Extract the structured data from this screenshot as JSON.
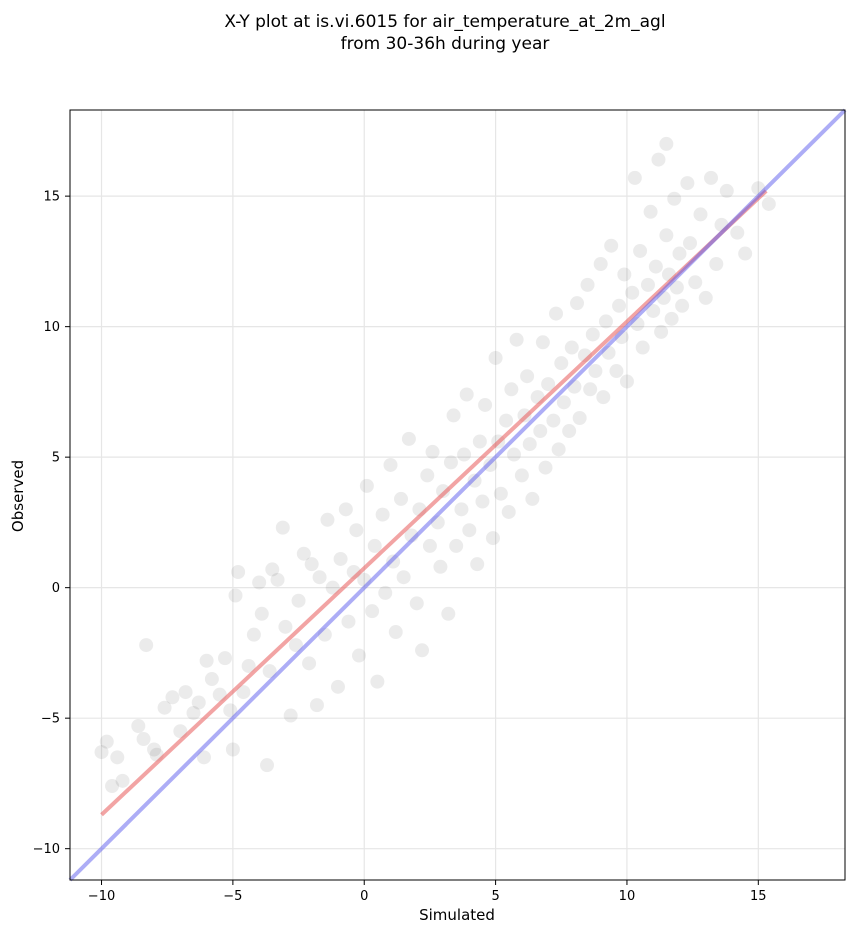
{
  "chart_data": {
    "type": "scatter",
    "title_line1": "X-Y plot at is.vi.6015 for air_temperature_at_2m_agl",
    "title_line2": "from 30-36h during year",
    "xlabel": "Simulated",
    "ylabel": "Observed",
    "xlim": [
      -11.2,
      18.3
    ],
    "ylim": [
      -11.2,
      18.3
    ],
    "x_ticks": [
      -10,
      -5,
      0,
      5,
      10,
      15
    ],
    "y_ticks": [
      -10,
      -5,
      0,
      5,
      10,
      15
    ],
    "x_tick_labels": [
      "−10",
      "−5",
      "0",
      "5",
      "10",
      "15"
    ],
    "y_tick_labels": [
      "−10",
      "−5",
      "0",
      "5",
      "10",
      "15"
    ],
    "grid": true,
    "point_color": "#000000",
    "point_alpha": 0.08,
    "points": [
      [
        -10.0,
        -6.3
      ],
      [
        -9.8,
        -5.9
      ],
      [
        -9.6,
        -7.6
      ],
      [
        -9.4,
        -6.5
      ],
      [
        -9.2,
        -7.4
      ],
      [
        -8.6,
        -5.3
      ],
      [
        -8.4,
        -5.8
      ],
      [
        -8.3,
        -2.2
      ],
      [
        -8.0,
        -6.2
      ],
      [
        -7.9,
        -6.4
      ],
      [
        -7.6,
        -4.6
      ],
      [
        -7.3,
        -4.2
      ],
      [
        -7.0,
        -5.5
      ],
      [
        -6.8,
        -4.0
      ],
      [
        -6.5,
        -4.8
      ],
      [
        -6.3,
        -4.4
      ],
      [
        -6.1,
        -6.5
      ],
      [
        -6.0,
        -2.8
      ],
      [
        -5.8,
        -3.5
      ],
      [
        -5.5,
        -4.1
      ],
      [
        -5.3,
        -2.7
      ],
      [
        -5.1,
        -4.7
      ],
      [
        -5.0,
        -6.2
      ],
      [
        -4.9,
        -0.3
      ],
      [
        -4.8,
        0.6
      ],
      [
        -4.6,
        -4.0
      ],
      [
        -4.4,
        -3.0
      ],
      [
        -4.2,
        -1.8
      ],
      [
        -4.0,
        0.2
      ],
      [
        -3.9,
        -1.0
      ],
      [
        -3.7,
        -6.8
      ],
      [
        -3.6,
        -3.2
      ],
      [
        -3.5,
        0.7
      ],
      [
        -3.3,
        0.3
      ],
      [
        -3.1,
        2.3
      ],
      [
        -3.0,
        -1.5
      ],
      [
        -2.8,
        -4.9
      ],
      [
        -2.6,
        -2.2
      ],
      [
        -2.5,
        -0.5
      ],
      [
        -2.3,
        1.3
      ],
      [
        -2.1,
        -2.9
      ],
      [
        -2.0,
        0.9
      ],
      [
        -1.8,
        -4.5
      ],
      [
        -1.7,
        0.4
      ],
      [
        -1.5,
        -1.8
      ],
      [
        -1.4,
        2.6
      ],
      [
        -1.2,
        0.0
      ],
      [
        -1.0,
        -3.8
      ],
      [
        -0.9,
        1.1
      ],
      [
        -0.7,
        3.0
      ],
      [
        -0.6,
        -1.3
      ],
      [
        -0.4,
        0.6
      ],
      [
        -0.3,
        2.2
      ],
      [
        -0.2,
        -2.6
      ],
      [
        0.0,
        0.3
      ],
      [
        0.1,
        3.9
      ],
      [
        0.3,
        -0.9
      ],
      [
        0.4,
        1.6
      ],
      [
        0.5,
        -3.6
      ],
      [
        0.7,
        2.8
      ],
      [
        0.8,
        -0.2
      ],
      [
        1.0,
        4.7
      ],
      [
        1.1,
        1.0
      ],
      [
        1.2,
        -1.7
      ],
      [
        1.4,
        3.4
      ],
      [
        1.5,
        0.4
      ],
      [
        1.7,
        5.7
      ],
      [
        1.8,
        2.0
      ],
      [
        2.0,
        -0.6
      ],
      [
        2.1,
        3.0
      ],
      [
        2.2,
        -2.4
      ],
      [
        2.4,
        4.3
      ],
      [
        2.5,
        1.6
      ],
      [
        2.6,
        5.2
      ],
      [
        2.8,
        2.5
      ],
      [
        2.9,
        0.8
      ],
      [
        3.0,
        3.7
      ],
      [
        3.2,
        -1.0
      ],
      [
        3.3,
        4.8
      ],
      [
        3.4,
        6.6
      ],
      [
        3.5,
        1.6
      ],
      [
        3.7,
        3.0
      ],
      [
        3.8,
        5.1
      ],
      [
        3.9,
        7.4
      ],
      [
        4.0,
        2.2
      ],
      [
        4.2,
        4.1
      ],
      [
        4.3,
        0.9
      ],
      [
        4.4,
        5.6
      ],
      [
        4.5,
        3.3
      ],
      [
        4.6,
        7.0
      ],
      [
        4.8,
        4.7
      ],
      [
        4.9,
        1.9
      ],
      [
        5.0,
        8.8
      ],
      [
        5.1,
        5.6
      ],
      [
        5.2,
        3.6
      ],
      [
        5.4,
        6.4
      ],
      [
        5.5,
        2.9
      ],
      [
        5.6,
        7.6
      ],
      [
        5.7,
        5.1
      ],
      [
        5.8,
        9.5
      ],
      [
        6.0,
        4.3
      ],
      [
        6.1,
        6.6
      ],
      [
        6.2,
        8.1
      ],
      [
        6.3,
        5.5
      ],
      [
        6.4,
        3.4
      ],
      [
        6.6,
        7.3
      ],
      [
        6.7,
        6.0
      ],
      [
        6.8,
        9.4
      ],
      [
        6.9,
        4.6
      ],
      [
        7.0,
        7.8
      ],
      [
        7.2,
        6.4
      ],
      [
        7.3,
        10.5
      ],
      [
        7.4,
        5.3
      ],
      [
        7.5,
        8.6
      ],
      [
        7.6,
        7.1
      ],
      [
        7.8,
        6.0
      ],
      [
        7.9,
        9.2
      ],
      [
        8.0,
        7.7
      ],
      [
        8.1,
        10.9
      ],
      [
        8.2,
        6.5
      ],
      [
        8.4,
        8.9
      ],
      [
        8.5,
        11.6
      ],
      [
        8.6,
        7.6
      ],
      [
        8.7,
        9.7
      ],
      [
        8.8,
        8.3
      ],
      [
        9.0,
        12.4
      ],
      [
        9.1,
        7.3
      ],
      [
        9.2,
        10.2
      ],
      [
        9.3,
        9.0
      ],
      [
        9.4,
        13.1
      ],
      [
        9.6,
        8.3
      ],
      [
        9.7,
        10.8
      ],
      [
        9.8,
        9.6
      ],
      [
        9.9,
        12.0
      ],
      [
        10.0,
        7.9
      ],
      [
        10.2,
        11.3
      ],
      [
        10.3,
        15.7
      ],
      [
        10.4,
        10.1
      ],
      [
        10.5,
        12.9
      ],
      [
        10.6,
        9.2
      ],
      [
        10.8,
        11.6
      ],
      [
        10.9,
        14.4
      ],
      [
        11.0,
        10.6
      ],
      [
        11.1,
        12.3
      ],
      [
        11.2,
        16.4
      ],
      [
        11.3,
        9.8
      ],
      [
        11.4,
        11.1
      ],
      [
        11.5,
        13.5
      ],
      [
        11.6,
        12.0
      ],
      [
        11.7,
        10.3
      ],
      [
        11.8,
        14.9
      ],
      [
        11.9,
        11.5
      ],
      [
        12.0,
        12.8
      ],
      [
        12.1,
        10.8
      ],
      [
        12.3,
        15.5
      ],
      [
        12.4,
        13.2
      ],
      [
        12.6,
        11.7
      ],
      [
        12.8,
        14.3
      ],
      [
        13.0,
        11.1
      ],
      [
        13.2,
        15.7
      ],
      [
        13.4,
        12.4
      ],
      [
        13.6,
        13.9
      ],
      [
        13.8,
        15.2
      ],
      [
        14.2,
        13.6
      ],
      [
        14.5,
        12.8
      ],
      [
        15.0,
        15.3
      ],
      [
        15.4,
        14.7
      ],
      [
        11.5,
        17.0
      ]
    ],
    "lines": [
      {
        "name": "",
        "color": "#e85a5a",
        "alpha": 0.55,
        "points": [
          [
            -10.0,
            -8.7
          ],
          [
            15.3,
            15.2
          ]
        ]
      },
      {
        "name": "",
        "color": "#5b5bee",
        "alpha": 0.5,
        "points": [
          [
            -11.2,
            -11.2
          ],
          [
            18.3,
            18.3
          ]
        ]
      }
    ]
  }
}
